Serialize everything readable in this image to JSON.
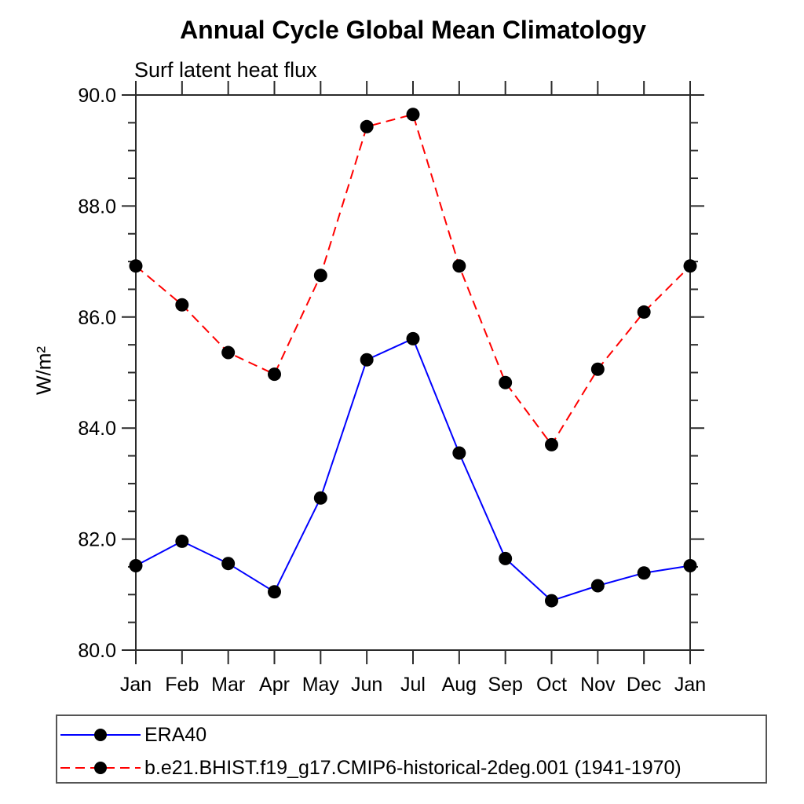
{
  "chart_data": {
    "type": "line",
    "title": "Annual Cycle Global Mean Climatology",
    "subtitle": "Surf latent heat flux",
    "ylabel": "W/m²",
    "xlabel": "",
    "categories": [
      "Jan",
      "Feb",
      "Mar",
      "Apr",
      "May",
      "Jun",
      "Jul",
      "Aug",
      "Sep",
      "Oct",
      "Nov",
      "Dec",
      "Jan"
    ],
    "ylim": [
      80.0,
      90.0
    ],
    "ytick_major_interval": 2.0,
    "ytick_minor_interval": 0.5,
    "ytick_labels": [
      "80.0",
      "82.0",
      "84.0",
      "86.0",
      "88.0",
      "90.0"
    ],
    "grid": false,
    "legend_position": "bottom-left-box",
    "marker": "filled-circle",
    "marker_color": "#000000",
    "axis_color": "#2a2a2a",
    "series": [
      {
        "name": "ERA40",
        "color": "#0000ff",
        "line_style": "solid",
        "values": [
          81.52,
          81.96,
          81.56,
          81.05,
          82.74,
          85.23,
          85.61,
          83.55,
          81.65,
          80.89,
          81.16,
          81.39,
          81.52
        ]
      },
      {
        "name": "b.e21.BHIST.f19_g17.CMIP6-historical-2deg.001 (1941-1970)",
        "color": "#ff0000",
        "line_style": "dashed",
        "values": [
          86.92,
          86.22,
          85.36,
          84.97,
          86.75,
          89.43,
          89.65,
          86.92,
          84.82,
          83.7,
          85.06,
          86.09,
          86.92
        ]
      }
    ]
  }
}
